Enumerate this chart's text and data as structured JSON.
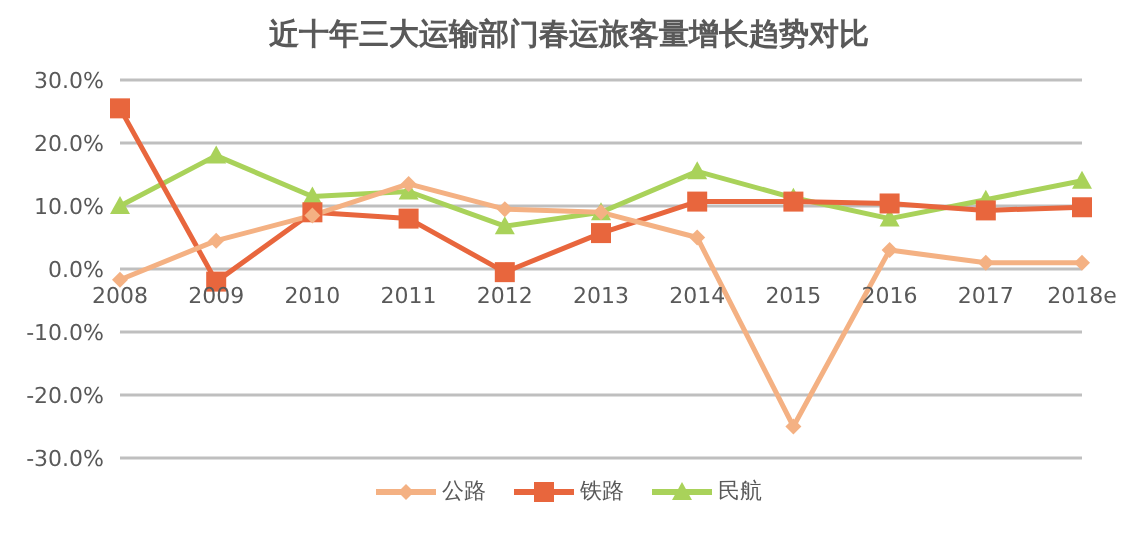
{
  "chart_data": {
    "type": "line",
    "title": "近十年三大运输部门春运旅客量增长趋势对比",
    "categories": [
      "2008",
      "2009",
      "2010",
      "2011",
      "2012",
      "2013",
      "2014",
      "2015",
      "2016",
      "2017",
      "2018e"
    ],
    "series": [
      {
        "name": "公路",
        "color": "#f4b183",
        "marker": "diamond",
        "values": [
          -1.7,
          4.5,
          8.5,
          13.5,
          9.5,
          9,
          5,
          -25,
          3,
          1,
          1
        ]
      },
      {
        "name": "铁路",
        "color": "#e8663d",
        "marker": "square",
        "values": [
          25.5,
          -2,
          9,
          8,
          -0.5,
          5.7,
          10.7,
          10.7,
          10.4,
          9.3,
          9.8
        ]
      },
      {
        "name": "民航",
        "color": "#a9d25a",
        "marker": "triangle",
        "values": [
          10,
          18,
          11.5,
          12.3,
          6.8,
          9,
          15.5,
          11.3,
          8,
          11,
          14
        ]
      }
    ],
    "ylim": [
      -30,
      30
    ],
    "yticks": [
      {
        "value": -30,
        "label": "-30.0%"
      },
      {
        "value": -20,
        "label": "-20.0%"
      },
      {
        "value": -10,
        "label": "-10.0%"
      },
      {
        "value": 0,
        "label": "0.0%"
      },
      {
        "value": 10,
        "label": "10.0%"
      },
      {
        "value": 20,
        "label": "20.0%"
      },
      {
        "value": 30,
        "label": "30.0%"
      }
    ],
    "grid": "y",
    "legend": "bottom"
  }
}
